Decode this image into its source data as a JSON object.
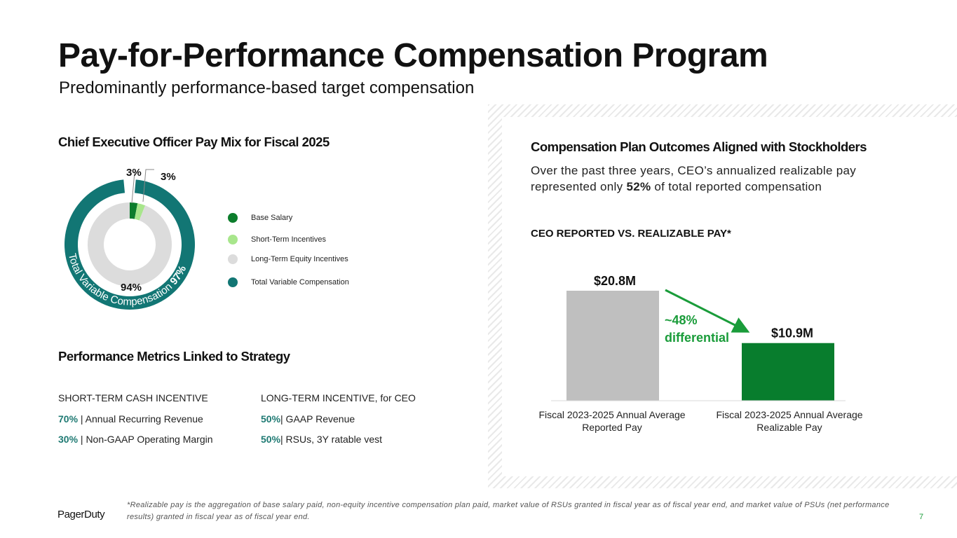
{
  "header": {
    "title": "Pay-for-Performance Compensation Program",
    "subtitle": "Predominantly performance-based target compensation"
  },
  "pay_mix": {
    "heading": "Chief Executive Officer Pay Mix for Fiscal 2025",
    "labels": {
      "base": "3%",
      "short_term": "3%",
      "long_term": "94%"
    },
    "ring_label_text": "Total Variable Compensation ",
    "ring_label_pct": "97%",
    "legend": [
      {
        "label": "Base Salary",
        "color": "#0c7d2c"
      },
      {
        "label": "Short-Term Incentives",
        "color": "#a8e68c"
      },
      {
        "label": "Long-Term Equity Incentives",
        "color": "#dcdcdc"
      },
      {
        "label": "Total Variable Compensation",
        "color": "#127674"
      }
    ],
    "chart_data": {
      "type": "pie",
      "inner_ring": [
        {
          "name": "Base Salary",
          "value": 3
        },
        {
          "name": "Short-Term Incentives",
          "value": 3
        },
        {
          "name": "Long-Term Equity Incentives",
          "value": 94
        }
      ],
      "outer_ring": [
        {
          "name": "Total Variable Compensation",
          "value": 97
        }
      ]
    }
  },
  "metrics": {
    "heading": "Performance Metrics Linked to Strategy",
    "short_term": {
      "header": "SHORT-TERM CASH INCENTIVE",
      "rows": [
        {
          "pct": "70%",
          "text": " | Annual Recurring Revenue"
        },
        {
          "pct": "30%",
          "text": " | Non-GAAP Operating Margin"
        }
      ]
    },
    "long_term": {
      "header": "LONG-TERM INCENTIVE, for CEO",
      "rows": [
        {
          "pct": "50%",
          "text": "| GAAP Revenue"
        },
        {
          "pct": "50%",
          "text": "| RSUs, 3Y ratable vest"
        }
      ]
    }
  },
  "outcomes": {
    "heading": "Compensation Plan Outcomes Aligned with Stockholders",
    "desc_line1": "Over the past three years, CEO’s annualized realizable pay",
    "desc_line2_pre": "represented only ",
    "desc_line2_bold": "52%",
    "desc_line2_post": " of total reported compensation",
    "chart_title": "CEO REPORTED VS. REALIZABLE PAY*",
    "differential_line1": "~48%",
    "differential_line2": "differential",
    "chart_data": {
      "type": "bar",
      "categories": [
        "Fiscal 2023-2025 Annual Average Reported Pay",
        "Fiscal 2023-2025 Annual Average Realizable Pay"
      ],
      "category_lines": [
        [
          "Fiscal 2023-2025 Annual Average",
          "Reported Pay"
        ],
        [
          "Fiscal 2023-2025 Annual Average",
          "Realizable Pay"
        ]
      ],
      "values": [
        20.8,
        10.9
      ],
      "value_labels": [
        "$20.8M",
        "$10.9M"
      ],
      "colors": [
        "#bfbfbf",
        "#087d2d"
      ],
      "unit": "$M",
      "ylim": [
        0,
        20.8
      ]
    }
  },
  "footer": {
    "footnote": "*Realizable pay is the aggregation of base salary paid, non-equity incentive compensation plan paid, market value of RSUs granted in fiscal year as of fiscal year end, and market value of PSUs (net performance results) granted in fiscal year as of fiscal year end.",
    "logo": "PagerDuty",
    "page_number": "7"
  },
  "colors": {
    "accent_green": "#1a9c3a",
    "teal": "#1f7a73"
  }
}
